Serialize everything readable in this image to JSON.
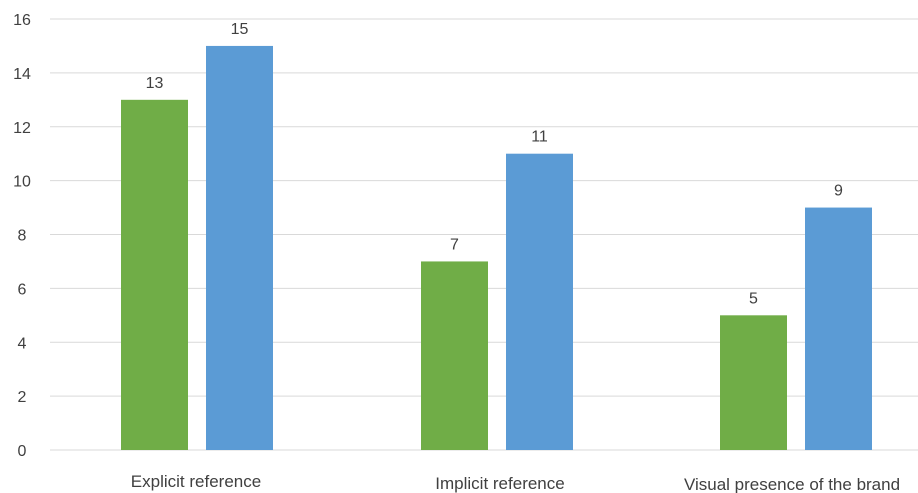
{
  "chart_data": {
    "type": "bar",
    "categories": [
      "Explicit reference",
      "Implicit reference",
      "Visual presence of the brand"
    ],
    "series": [
      {
        "color": "#70ad47",
        "values": [
          13,
          7,
          5
        ]
      },
      {
        "color": "#5b9bd5",
        "values": [
          15,
          11,
          9
        ]
      }
    ],
    "ylim": [
      0,
      16
    ],
    "yticks": [
      0,
      2,
      4,
      6,
      8,
      10,
      12,
      14,
      16
    ],
    "grid": true,
    "data_labels": true,
    "title": "",
    "xlabel": "",
    "ylabel": ""
  }
}
